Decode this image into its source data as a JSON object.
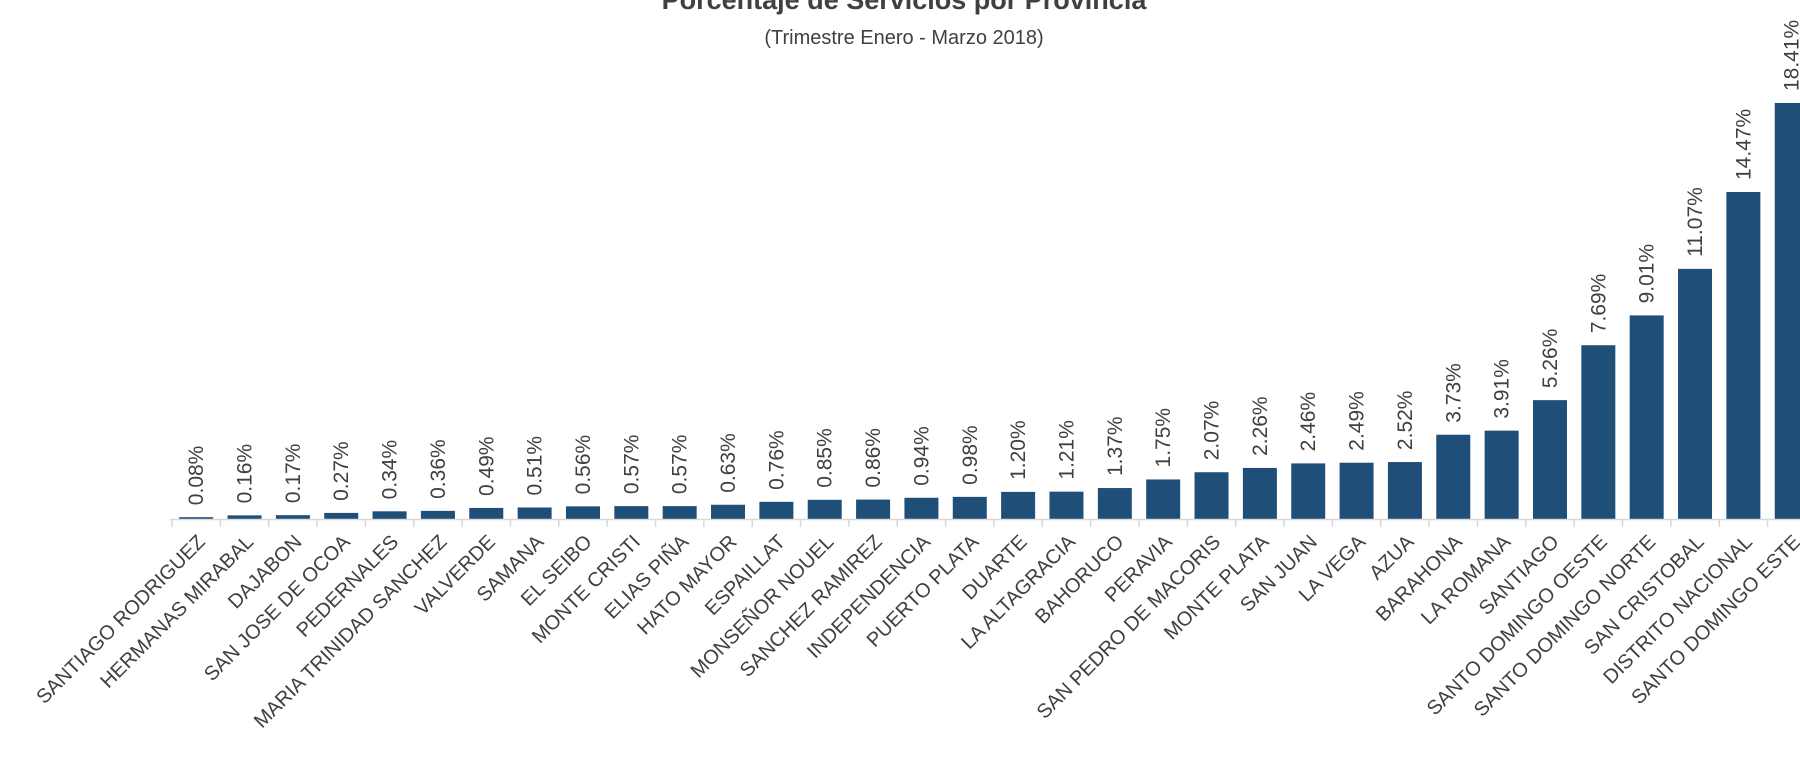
{
  "chart_data": {
    "type": "bar",
    "title": "Porcentaje de Servicios por Provincia",
    "subtitle": "(Trimestre Enero - Marzo 2018)",
    "categories": [
      "SANTIAGO RODRIGUEZ",
      "HERMANAS MIRABAL",
      "DAJABON",
      "SAN JOSE DE OCOA",
      "PEDERNALES",
      "MARIA TRINIDAD SANCHEZ",
      "VALVERDE",
      "SAMANA",
      "EL SEIBO",
      "MONTE CRISTI",
      "ELIAS PIÑA",
      "HATO MAYOR",
      "ESPAILLAT",
      "MONSEÑOR NOUEL",
      "SANCHEZ RAMIREZ",
      "INDEPENDENCIA",
      "PUERTO PLATA",
      "DUARTE",
      "LA ALTAGRACIA",
      "BAHORUCO",
      "PERAVIA",
      "SAN PEDRO DE MACORIS",
      "MONTE PLATA",
      "SAN JUAN",
      "LA VEGA",
      "AZUA",
      "BARAHONA",
      "LA ROMANA",
      "SANTIAGO",
      "SANTO DOMINGO OESTE",
      "SANTO DOMINGO NORTE",
      "SAN CRISTOBAL",
      "DISTRITO NACIONAL",
      "SANTO DOMINGO ESTE"
    ],
    "values": [
      0.08,
      0.16,
      0.17,
      0.27,
      0.34,
      0.36,
      0.49,
      0.51,
      0.56,
      0.57,
      0.57,
      0.63,
      0.76,
      0.85,
      0.86,
      0.94,
      0.98,
      1.2,
      1.21,
      1.37,
      1.75,
      2.07,
      2.26,
      2.46,
      2.49,
      2.52,
      3.73,
      3.91,
      5.26,
      7.69,
      9.01,
      11.07,
      14.47,
      18.41
    ],
    "data_labels": [
      "0.08%",
      "0.16%",
      "0.17%",
      "0.27%",
      "0.34%",
      "0.36%",
      "0.49%",
      "0.51%",
      "0.56%",
      "0.57%",
      "0.57%",
      "0.63%",
      "0.76%",
      "0.85%",
      "0.86%",
      "0.94%",
      "0.98%",
      "1.20%",
      "1.21%",
      "1.37%",
      "1.75%",
      "2.07%",
      "2.26%",
      "2.46%",
      "2.49%",
      "2.52%",
      "3.73%",
      "3.91%",
      "5.26%",
      "7.69%",
      "9.01%",
      "11.07%",
      "14.47%",
      "18.41%"
    ],
    "value_unit": "%",
    "ylim": [
      0,
      18.41
    ],
    "grid": false,
    "legend": "none",
    "bar_color": "#1f4e79",
    "axis_color": "#d9d9d9",
    "text_color": "#404040"
  }
}
